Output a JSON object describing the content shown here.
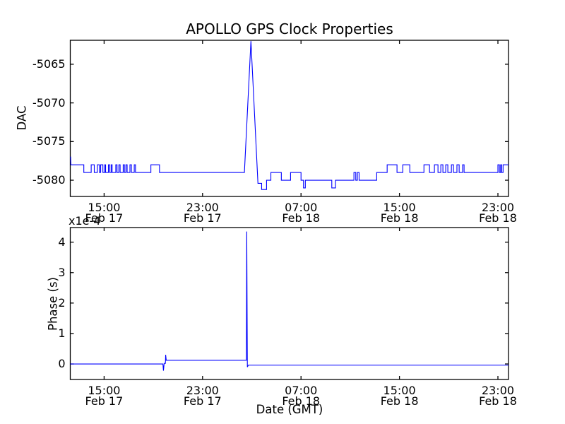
{
  "figure": {
    "title": "APOLLO GPS Clock Properties",
    "background": "#ffffff",
    "frame_color": "#000000",
    "accent_line_color": "#0000ff"
  },
  "chart_data": [
    {
      "type": "line",
      "title": "APOLLO GPS Clock Properties",
      "ylabel": "DAC",
      "xlabel": "",
      "legend": "none",
      "grid": false,
      "x_unit": "hours since Feb 17 00:00 GMT",
      "xlim": [
        12.25,
        47.86
      ],
      "ylim": [
        -5082.1,
        -5061.9
      ],
      "yticks": {
        "values": [
          -5065,
          -5070,
          -5075,
          -5080
        ],
        "labels": [
          "-5065",
          "-5070",
          "-5075",
          "-5080"
        ]
      },
      "xticks": {
        "values": [
          15,
          23,
          31,
          39,
          47
        ],
        "labels": [
          [
            "15:00",
            "Feb 17"
          ],
          [
            "23:00",
            "Feb 17"
          ],
          [
            "07:00",
            "Feb 18"
          ],
          [
            "15:00",
            "Feb 18"
          ],
          [
            "23:00",
            "Feb 18"
          ]
        ]
      },
      "series": [
        {
          "name": "DAC",
          "color": "#0000ff",
          "points": [
            [
              12.25,
              -5077
            ],
            [
              12.28,
              -5077
            ],
            [
              12.3,
              -5078
            ],
            [
              13.35,
              -5078
            ],
            [
              13.35,
              -5079
            ],
            [
              13.95,
              -5079
            ],
            [
              13.95,
              -5078
            ],
            [
              14.2,
              -5078
            ],
            [
              14.2,
              -5079
            ],
            [
              14.45,
              -5079
            ],
            [
              14.45,
              -5078
            ],
            [
              14.62,
              -5078
            ],
            [
              14.62,
              -5079
            ],
            [
              14.72,
              -5079
            ],
            [
              14.72,
              -5078
            ],
            [
              14.9,
              -5078
            ],
            [
              14.9,
              -5079
            ],
            [
              15.05,
              -5079
            ],
            [
              15.05,
              -5078
            ],
            [
              15.12,
              -5078
            ],
            [
              15.12,
              -5079
            ],
            [
              15.35,
              -5079
            ],
            [
              15.35,
              -5078
            ],
            [
              15.45,
              -5078
            ],
            [
              15.45,
              -5079
            ],
            [
              15.57,
              -5079
            ],
            [
              15.57,
              -5078
            ],
            [
              15.65,
              -5078
            ],
            [
              15.65,
              -5079
            ],
            [
              15.95,
              -5079
            ],
            [
              15.95,
              -5078
            ],
            [
              16.05,
              -5078
            ],
            [
              16.05,
              -5079
            ],
            [
              16.2,
              -5079
            ],
            [
              16.2,
              -5078
            ],
            [
              16.3,
              -5078
            ],
            [
              16.3,
              -5079
            ],
            [
              16.55,
              -5079
            ],
            [
              16.55,
              -5078
            ],
            [
              16.65,
              -5078
            ],
            [
              16.65,
              -5079
            ],
            [
              16.77,
              -5079
            ],
            [
              16.77,
              -5078
            ],
            [
              16.87,
              -5078
            ],
            [
              16.87,
              -5079
            ],
            [
              17.1,
              -5079
            ],
            [
              17.1,
              -5078
            ],
            [
              17.22,
              -5078
            ],
            [
              17.22,
              -5079
            ],
            [
              17.45,
              -5079
            ],
            [
              17.45,
              -5078
            ],
            [
              17.55,
              -5078
            ],
            [
              17.55,
              -5079
            ],
            [
              18.8,
              -5079
            ],
            [
              18.8,
              -5078
            ],
            [
              19.5,
              -5078
            ],
            [
              19.5,
              -5079
            ],
            [
              26.4,
              -5079
            ],
            [
              26.93,
              -5062
            ],
            [
              27.5,
              -5080.4
            ],
            [
              27.8,
              -5080.4
            ],
            [
              27.8,
              -5081.2
            ],
            [
              28.2,
              -5081.2
            ],
            [
              28.2,
              -5080
            ],
            [
              28.55,
              -5080
            ],
            [
              28.55,
              -5079
            ],
            [
              29.4,
              -5079
            ],
            [
              29.4,
              -5080
            ],
            [
              30.15,
              -5080
            ],
            [
              30.15,
              -5079
            ],
            [
              31.0,
              -5079
            ],
            [
              31.0,
              -5080
            ],
            [
              31.2,
              -5080
            ],
            [
              31.2,
              -5081
            ],
            [
              31.35,
              -5081
            ],
            [
              31.35,
              -5080
            ],
            [
              33.5,
              -5080
            ],
            [
              33.5,
              -5081
            ],
            [
              33.8,
              -5081
            ],
            [
              33.8,
              -5080
            ],
            [
              35.3,
              -5080
            ],
            [
              35.3,
              -5079
            ],
            [
              35.45,
              -5079
            ],
            [
              35.45,
              -5080
            ],
            [
              35.58,
              -5080
            ],
            [
              35.58,
              -5079
            ],
            [
              35.72,
              -5079
            ],
            [
              35.72,
              -5080
            ],
            [
              37.15,
              -5080
            ],
            [
              37.15,
              -5079
            ],
            [
              38.0,
              -5079
            ],
            [
              38.0,
              -5078
            ],
            [
              38.8,
              -5078
            ],
            [
              38.8,
              -5079
            ],
            [
              39.27,
              -5079
            ],
            [
              39.27,
              -5078
            ],
            [
              39.84,
              -5078
            ],
            [
              39.84,
              -5079
            ],
            [
              40.99,
              -5079
            ],
            [
              40.99,
              -5078
            ],
            [
              41.44,
              -5078
            ],
            [
              41.44,
              -5079
            ],
            [
              41.84,
              -5079
            ],
            [
              41.84,
              -5078
            ],
            [
              42.13,
              -5078
            ],
            [
              42.13,
              -5079
            ],
            [
              42.36,
              -5079
            ],
            [
              42.36,
              -5078
            ],
            [
              42.53,
              -5078
            ],
            [
              42.53,
              -5079
            ],
            [
              42.76,
              -5079
            ],
            [
              42.76,
              -5078
            ],
            [
              42.93,
              -5078
            ],
            [
              42.93,
              -5079
            ],
            [
              43.22,
              -5079
            ],
            [
              43.22,
              -5078
            ],
            [
              43.39,
              -5078
            ],
            [
              43.39,
              -5079
            ],
            [
              43.67,
              -5079
            ],
            [
              43.67,
              -5078
            ],
            [
              43.85,
              -5078
            ],
            [
              43.85,
              -5079
            ],
            [
              44.13,
              -5079
            ],
            [
              44.13,
              -5078
            ],
            [
              44.25,
              -5078
            ],
            [
              44.25,
              -5079
            ],
            [
              47.0,
              -5079
            ],
            [
              47.0,
              -5078
            ],
            [
              47.12,
              -5078
            ],
            [
              47.12,
              -5079
            ],
            [
              47.22,
              -5079
            ],
            [
              47.22,
              -5078
            ],
            [
              47.3,
              -5078
            ],
            [
              47.3,
              -5079
            ],
            [
              47.42,
              -5079
            ],
            [
              47.42,
              -5078
            ],
            [
              47.86,
              -5078
            ]
          ]
        }
      ]
    },
    {
      "type": "line",
      "title": "",
      "ylabel": "Phase (s)",
      "xlabel": "Date (GMT)",
      "offset_text": "x1e-4",
      "y_scale": "1e-4",
      "legend": "none",
      "grid": false,
      "x_unit": "hours since Feb 17 00:00 GMT",
      "xlim": [
        12.25,
        47.86
      ],
      "ylim": [
        -0.51,
        4.48
      ],
      "yticks": {
        "values": [
          0,
          1,
          2,
          3,
          4
        ],
        "labels": [
          "0",
          "1",
          "2",
          "3",
          "4"
        ]
      },
      "xticks": {
        "values": [
          15,
          23,
          31,
          39,
          47
        ],
        "labels": [
          [
            "15:00",
            "Feb 17"
          ],
          [
            "23:00",
            "Feb 17"
          ],
          [
            "07:00",
            "Feb 18"
          ],
          [
            "15:00",
            "Feb 18"
          ],
          [
            "23:00",
            "Feb 18"
          ]
        ]
      },
      "series": [
        {
          "name": "Phase",
          "color": "#0000ff",
          "points": [
            [
              12.25,
              0
            ],
            [
              19.78,
              0
            ],
            [
              19.82,
              -0.22
            ],
            [
              19.88,
              0.02
            ],
            [
              19.98,
              0.02
            ],
            [
              20.0,
              0.3
            ],
            [
              20.05,
              0.12
            ],
            [
              26.56,
              0.12
            ],
            [
              26.59,
              4.35
            ],
            [
              26.64,
              -0.1
            ],
            [
              26.72,
              -0.04
            ],
            [
              47.86,
              -0.04
            ]
          ]
        }
      ]
    }
  ]
}
